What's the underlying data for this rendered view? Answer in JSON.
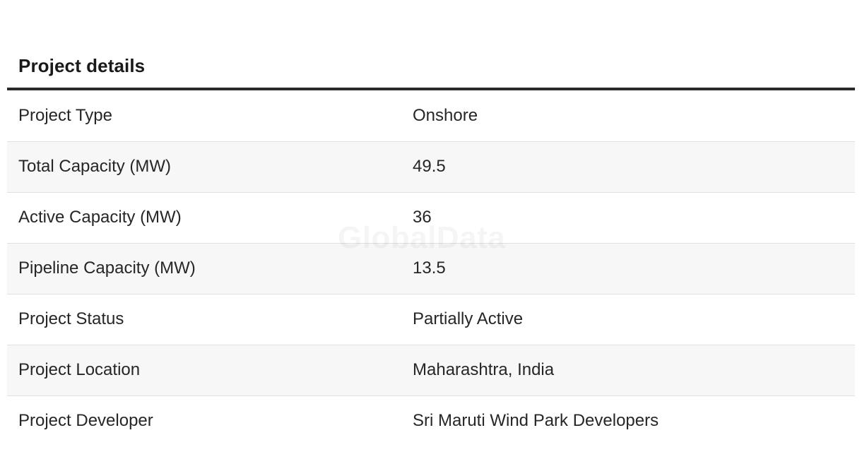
{
  "section": {
    "title": "Project details"
  },
  "rows": [
    {
      "label": "Project Type",
      "value": "Onshore"
    },
    {
      "label": "Total Capacity (MW)",
      "value": "49.5"
    },
    {
      "label": "Active Capacity (MW)",
      "value": "36"
    },
    {
      "label": "Pipeline Capacity (MW)",
      "value": "13.5"
    },
    {
      "label": "Project Status",
      "value": "Partially Active"
    },
    {
      "label": "Project Location",
      "value": "Maharashtra, India"
    },
    {
      "label": "Project Developer",
      "value": "Sri Maruti Wind Park Developers"
    }
  ],
  "watermark": "GlobalData",
  "colors": {
    "rule": "#2a2a2a",
    "alt_row": "#f7f7f7",
    "divider": "#e0e0e0"
  }
}
